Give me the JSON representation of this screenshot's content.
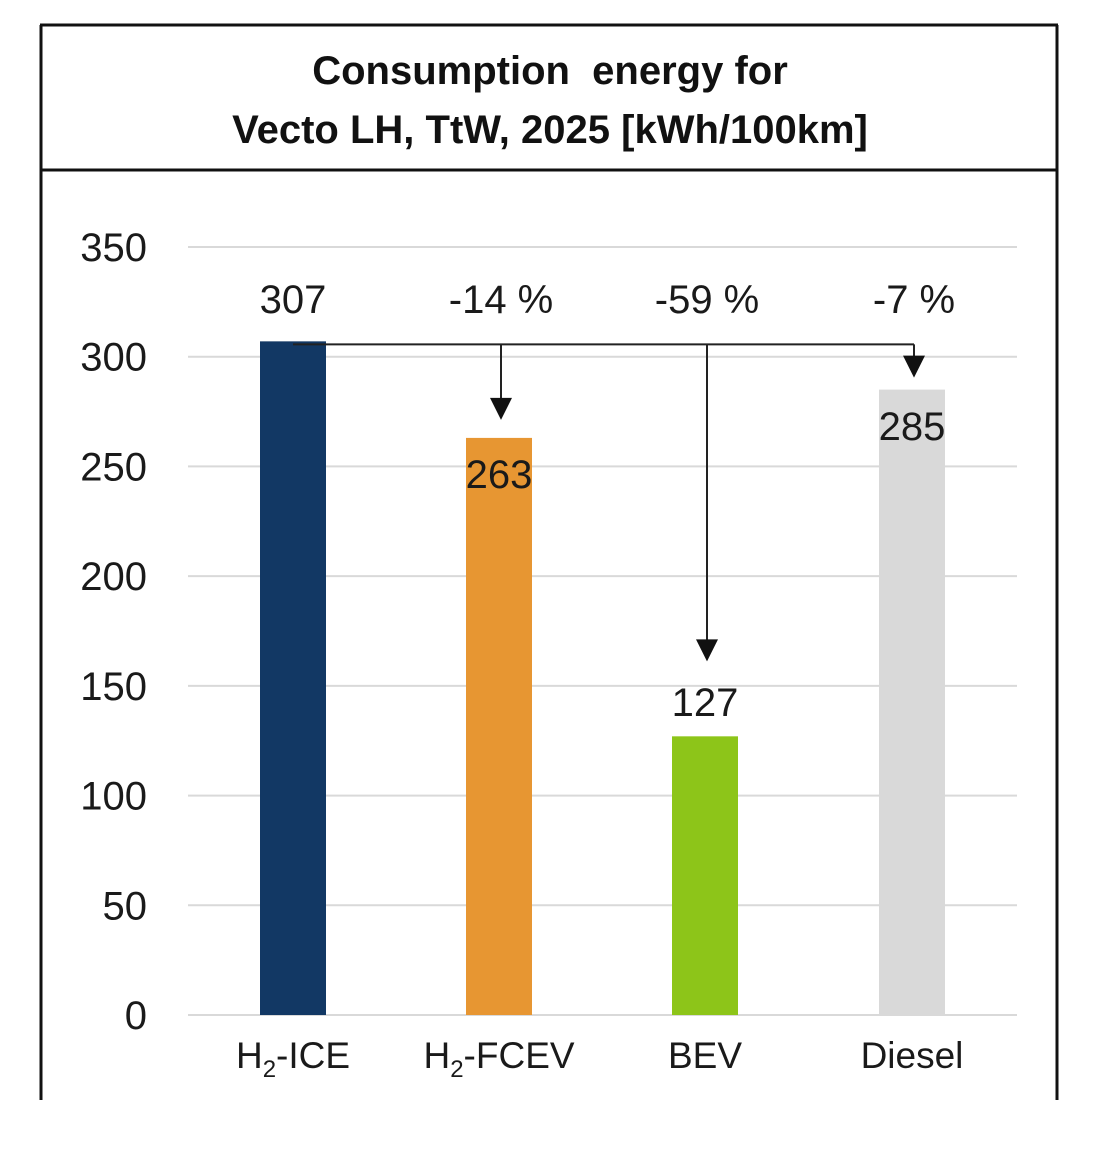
{
  "chart_data": {
    "type": "bar",
    "title_lines": [
      "Consumption  energy for",
      "Vecto LH, TtW, 2025 [kWh/100km]"
    ],
    "categories": [
      {
        "main": "H",
        "sub": "2",
        "rest": "-ICE"
      },
      {
        "main": "H",
        "sub": "2",
        "rest": "-FCEV"
      },
      {
        "main": "BEV",
        "sub": "",
        "rest": ""
      },
      {
        "main": "Diesel",
        "sub": "",
        "rest": ""
      }
    ],
    "values": [
      307,
      263,
      127,
      285
    ],
    "value_labels": [
      "307",
      "263",
      "127",
      "285"
    ],
    "bar_colors": [
      "#123864",
      "#e79632",
      "#8dc519",
      "#d9d9d9"
    ],
    "change_labels": [
      "",
      "-14 %",
      "-59 %",
      "-7 %"
    ],
    "ylim": [
      0,
      350
    ],
    "yticks": [
      "0",
      "50",
      "100",
      "150",
      "200",
      "250",
      "300",
      "350"
    ],
    "ytick_values": [
      0,
      50,
      100,
      150,
      200,
      250,
      300,
      350
    ],
    "grid": true,
    "xlabel": "",
    "ylabel": ""
  }
}
